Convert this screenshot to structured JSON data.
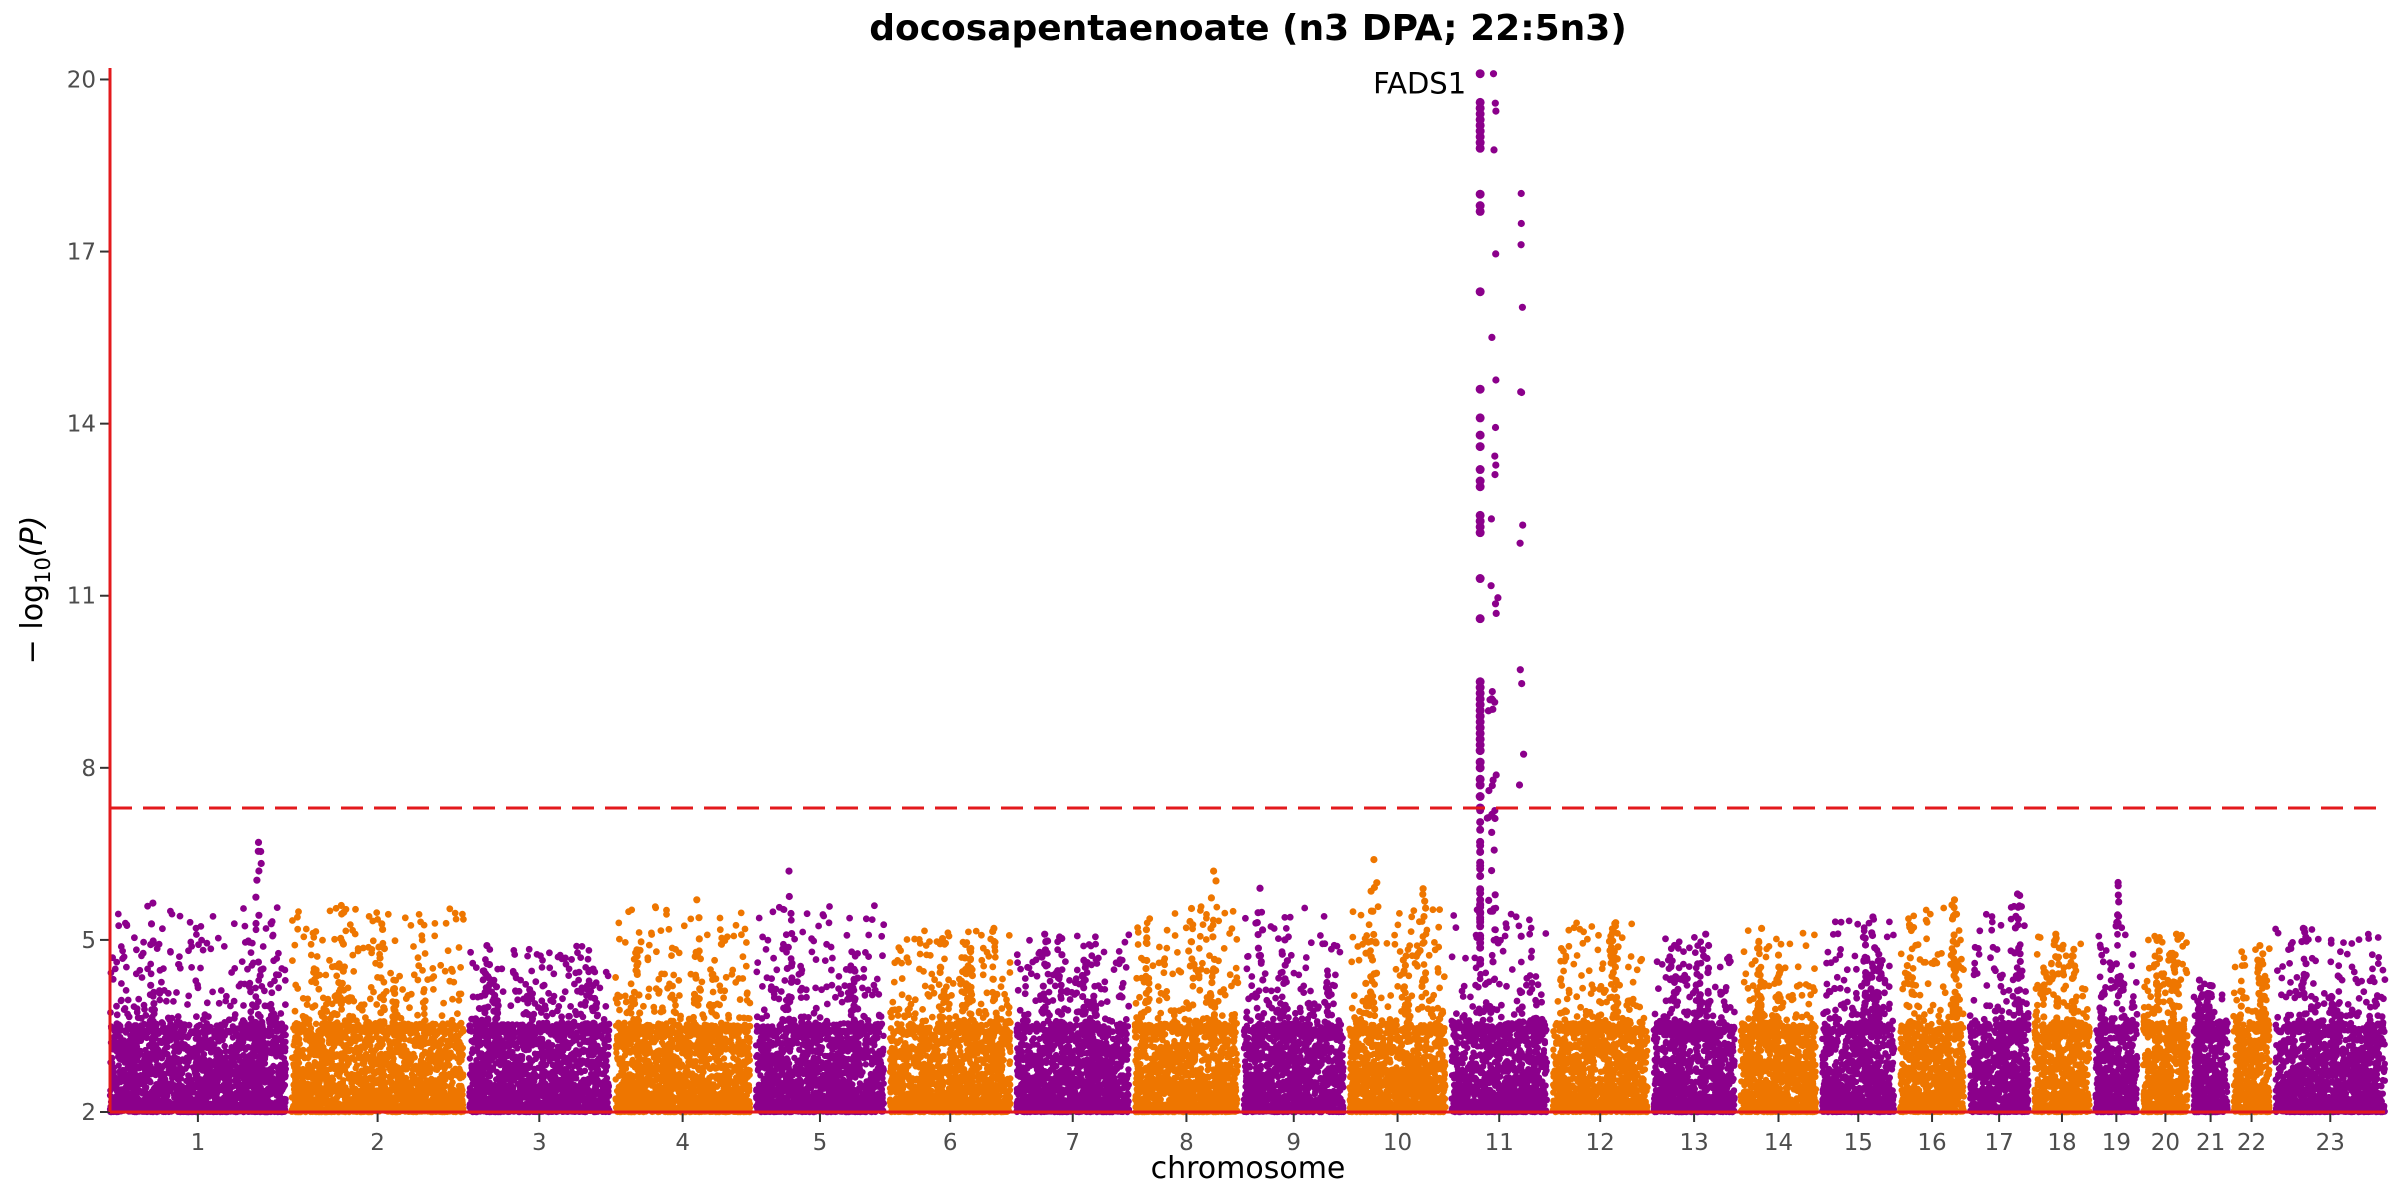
{
  "chart_data": {
    "type": "scatter",
    "title": "docosapentaenoate (n3 DPA; 22:5n3)",
    "xlabel": "chromosome",
    "ylabel_prefix": "− log",
    "ylabel_subscript": "10",
    "ylabel_suffix": "(P)",
    "ylim": [
      2,
      20.2
    ],
    "yticks": [
      2,
      5,
      8,
      11,
      14,
      17,
      20
    ],
    "significance_threshold": 7.3,
    "threshold_color": "#e31a1c",
    "axis_color": "#e31a1c",
    "grid": false,
    "colors": [
      "#8b008b",
      "#ee7600"
    ],
    "chromosomes": [
      {
        "label": "1",
        "color": "#8b008b",
        "max": 6.7
      },
      {
        "label": "2",
        "color": "#ee7600",
        "max": 5.6
      },
      {
        "label": "3",
        "color": "#8b008b",
        "max": 4.9
      },
      {
        "label": "4",
        "color": "#ee7600",
        "max": 5.7
      },
      {
        "label": "5",
        "color": "#8b008b",
        "max": 6.2
      },
      {
        "label": "6",
        "color": "#ee7600",
        "max": 5.2
      },
      {
        "label": "7",
        "color": "#8b008b",
        "max": 5.1
      },
      {
        "label": "8",
        "color": "#ee7600",
        "max": 6.2
      },
      {
        "label": "9",
        "color": "#8b008b",
        "max": 5.9
      },
      {
        "label": "10",
        "color": "#ee7600",
        "max": 6.4
      },
      {
        "label": "11",
        "color": "#8b008b",
        "max": 20.1
      },
      {
        "label": "12",
        "color": "#ee7600",
        "max": 5.3
      },
      {
        "label": "13",
        "color": "#8b008b",
        "max": 5.1
      },
      {
        "label": "14",
        "color": "#ee7600",
        "max": 5.2
      },
      {
        "label": "15",
        "color": "#8b008b",
        "max": 5.4
      },
      {
        "label": "16",
        "color": "#ee7600",
        "max": 5.7
      },
      {
        "label": "17",
        "color": "#8b008b",
        "max": 5.8
      },
      {
        "label": "18",
        "color": "#ee7600",
        "max": 5.1
      },
      {
        "label": "19",
        "color": "#8b008b",
        "max": 6.0
      },
      {
        "label": "20",
        "color": "#ee7600",
        "max": 5.1
      },
      {
        "label": "21",
        "color": "#8b008b",
        "max": 4.3
      },
      {
        "label": "22",
        "color": "#ee7600",
        "max": 4.9
      },
      {
        "label": "23",
        "color": "#8b008b",
        "max": 5.2
      }
    ],
    "peak": {
      "chromosome": "11",
      "label": "FADS1",
      "values": [
        20.1,
        19.6,
        19.5,
        19.4,
        19.3,
        19.2,
        19.1,
        19.0,
        18.9,
        18.8,
        18.0,
        17.8,
        17.7,
        16.3,
        14.6,
        14.1,
        13.8,
        13.6,
        13.2,
        13.0,
        12.9,
        12.4,
        12.3,
        12.2,
        12.1,
        11.3,
        10.6,
        9.5,
        9.4,
        9.3,
        9.2,
        9.1,
        9.0,
        8.9,
        8.8,
        8.7,
        8.6,
        8.5,
        8.4,
        8.3,
        8.1,
        8.0,
        7.8,
        7.7,
        7.5,
        7.3
      ]
    }
  }
}
